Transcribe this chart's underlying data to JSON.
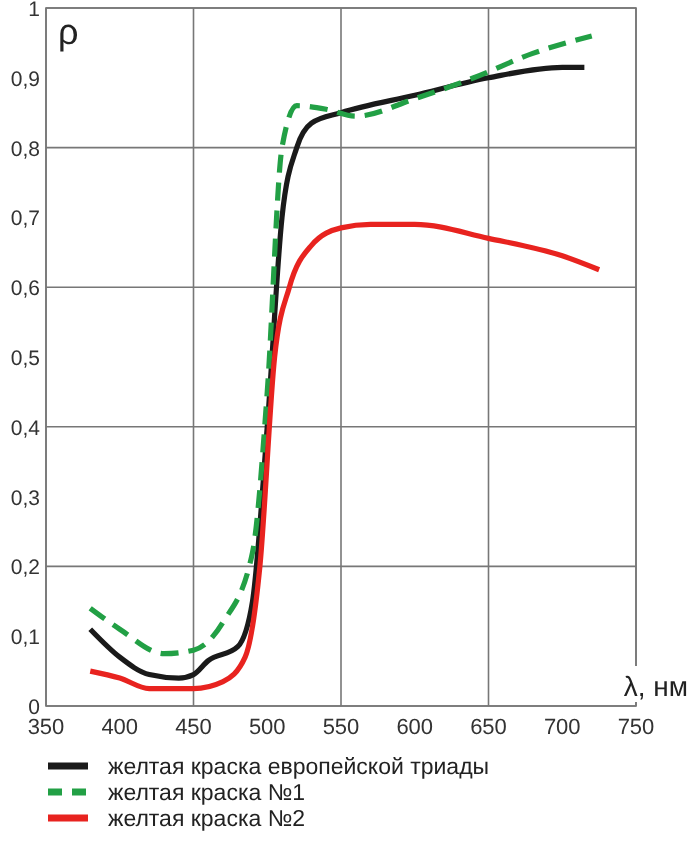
{
  "chart_data": {
    "type": "line",
    "xlabel": "λ, нм",
    "ylabel": "ρ",
    "xlim": [
      350,
      750
    ],
    "xticks": [
      350,
      400,
      450,
      500,
      550,
      600,
      650,
      700,
      750
    ],
    "ylim": [
      0,
      1
    ],
    "yticks": [
      0,
      {
        "value": 0.1,
        "label": "0,1"
      },
      {
        "value": 0.2,
        "label": "0,2"
      },
      {
        "value": 0.3,
        "label": "0,3"
      },
      {
        "value": 0.4,
        "label": "0,4"
      },
      {
        "value": 0.5,
        "label": "0,5"
      },
      {
        "value": 0.6,
        "label": "0,6"
      },
      {
        "value": 0.7,
        "label": "0,7"
      },
      {
        "value": 0.8,
        "label": "0,8"
      },
      {
        "value": 0.9,
        "label": "0,9"
      },
      1
    ],
    "grid": true,
    "legend": "bottom",
    "series": [
      {
        "name": "желтая краска европейской триады",
        "color": "#1a1a1a",
        "line_style": "solid",
        "x": [
          380,
          400,
          420,
          440,
          450,
          460,
          480,
          490,
          500,
          510,
          520,
          530,
          550,
          600,
          650,
          700,
          715
        ],
        "values": [
          0.11,
          0.07,
          0.045,
          0.04,
          0.045,
          0.065,
          0.085,
          0.15,
          0.4,
          0.7,
          0.8,
          0.835,
          0.85,
          0.875,
          0.9,
          0.915,
          0.915
        ]
      },
      {
        "name": "желтая краска №1",
        "color": "#22a045",
        "line_style": "dashed",
        "x": [
          380,
          400,
          430,
          450,
          470,
          490,
          500,
          510,
          520,
          540,
          560,
          600,
          640,
          680,
          720
        ],
        "values": [
          0.14,
          0.11,
          0.075,
          0.08,
          0.12,
          0.22,
          0.45,
          0.8,
          0.86,
          0.855,
          0.845,
          0.87,
          0.9,
          0.935,
          0.96
        ]
      },
      {
        "name": "желтая краска №2",
        "color": "#e8231f",
        "line_style": "solid",
        "x": [
          380,
          400,
          420,
          450,
          470,
          485,
          495,
          505,
          515,
          530,
          550,
          570,
          600,
          650,
          700,
          725
        ],
        "values": [
          0.05,
          0.04,
          0.025,
          0.025,
          0.035,
          0.07,
          0.2,
          0.5,
          0.6,
          0.66,
          0.685,
          0.69,
          0.69,
          0.67,
          0.645,
          0.625
        ]
      }
    ]
  }
}
